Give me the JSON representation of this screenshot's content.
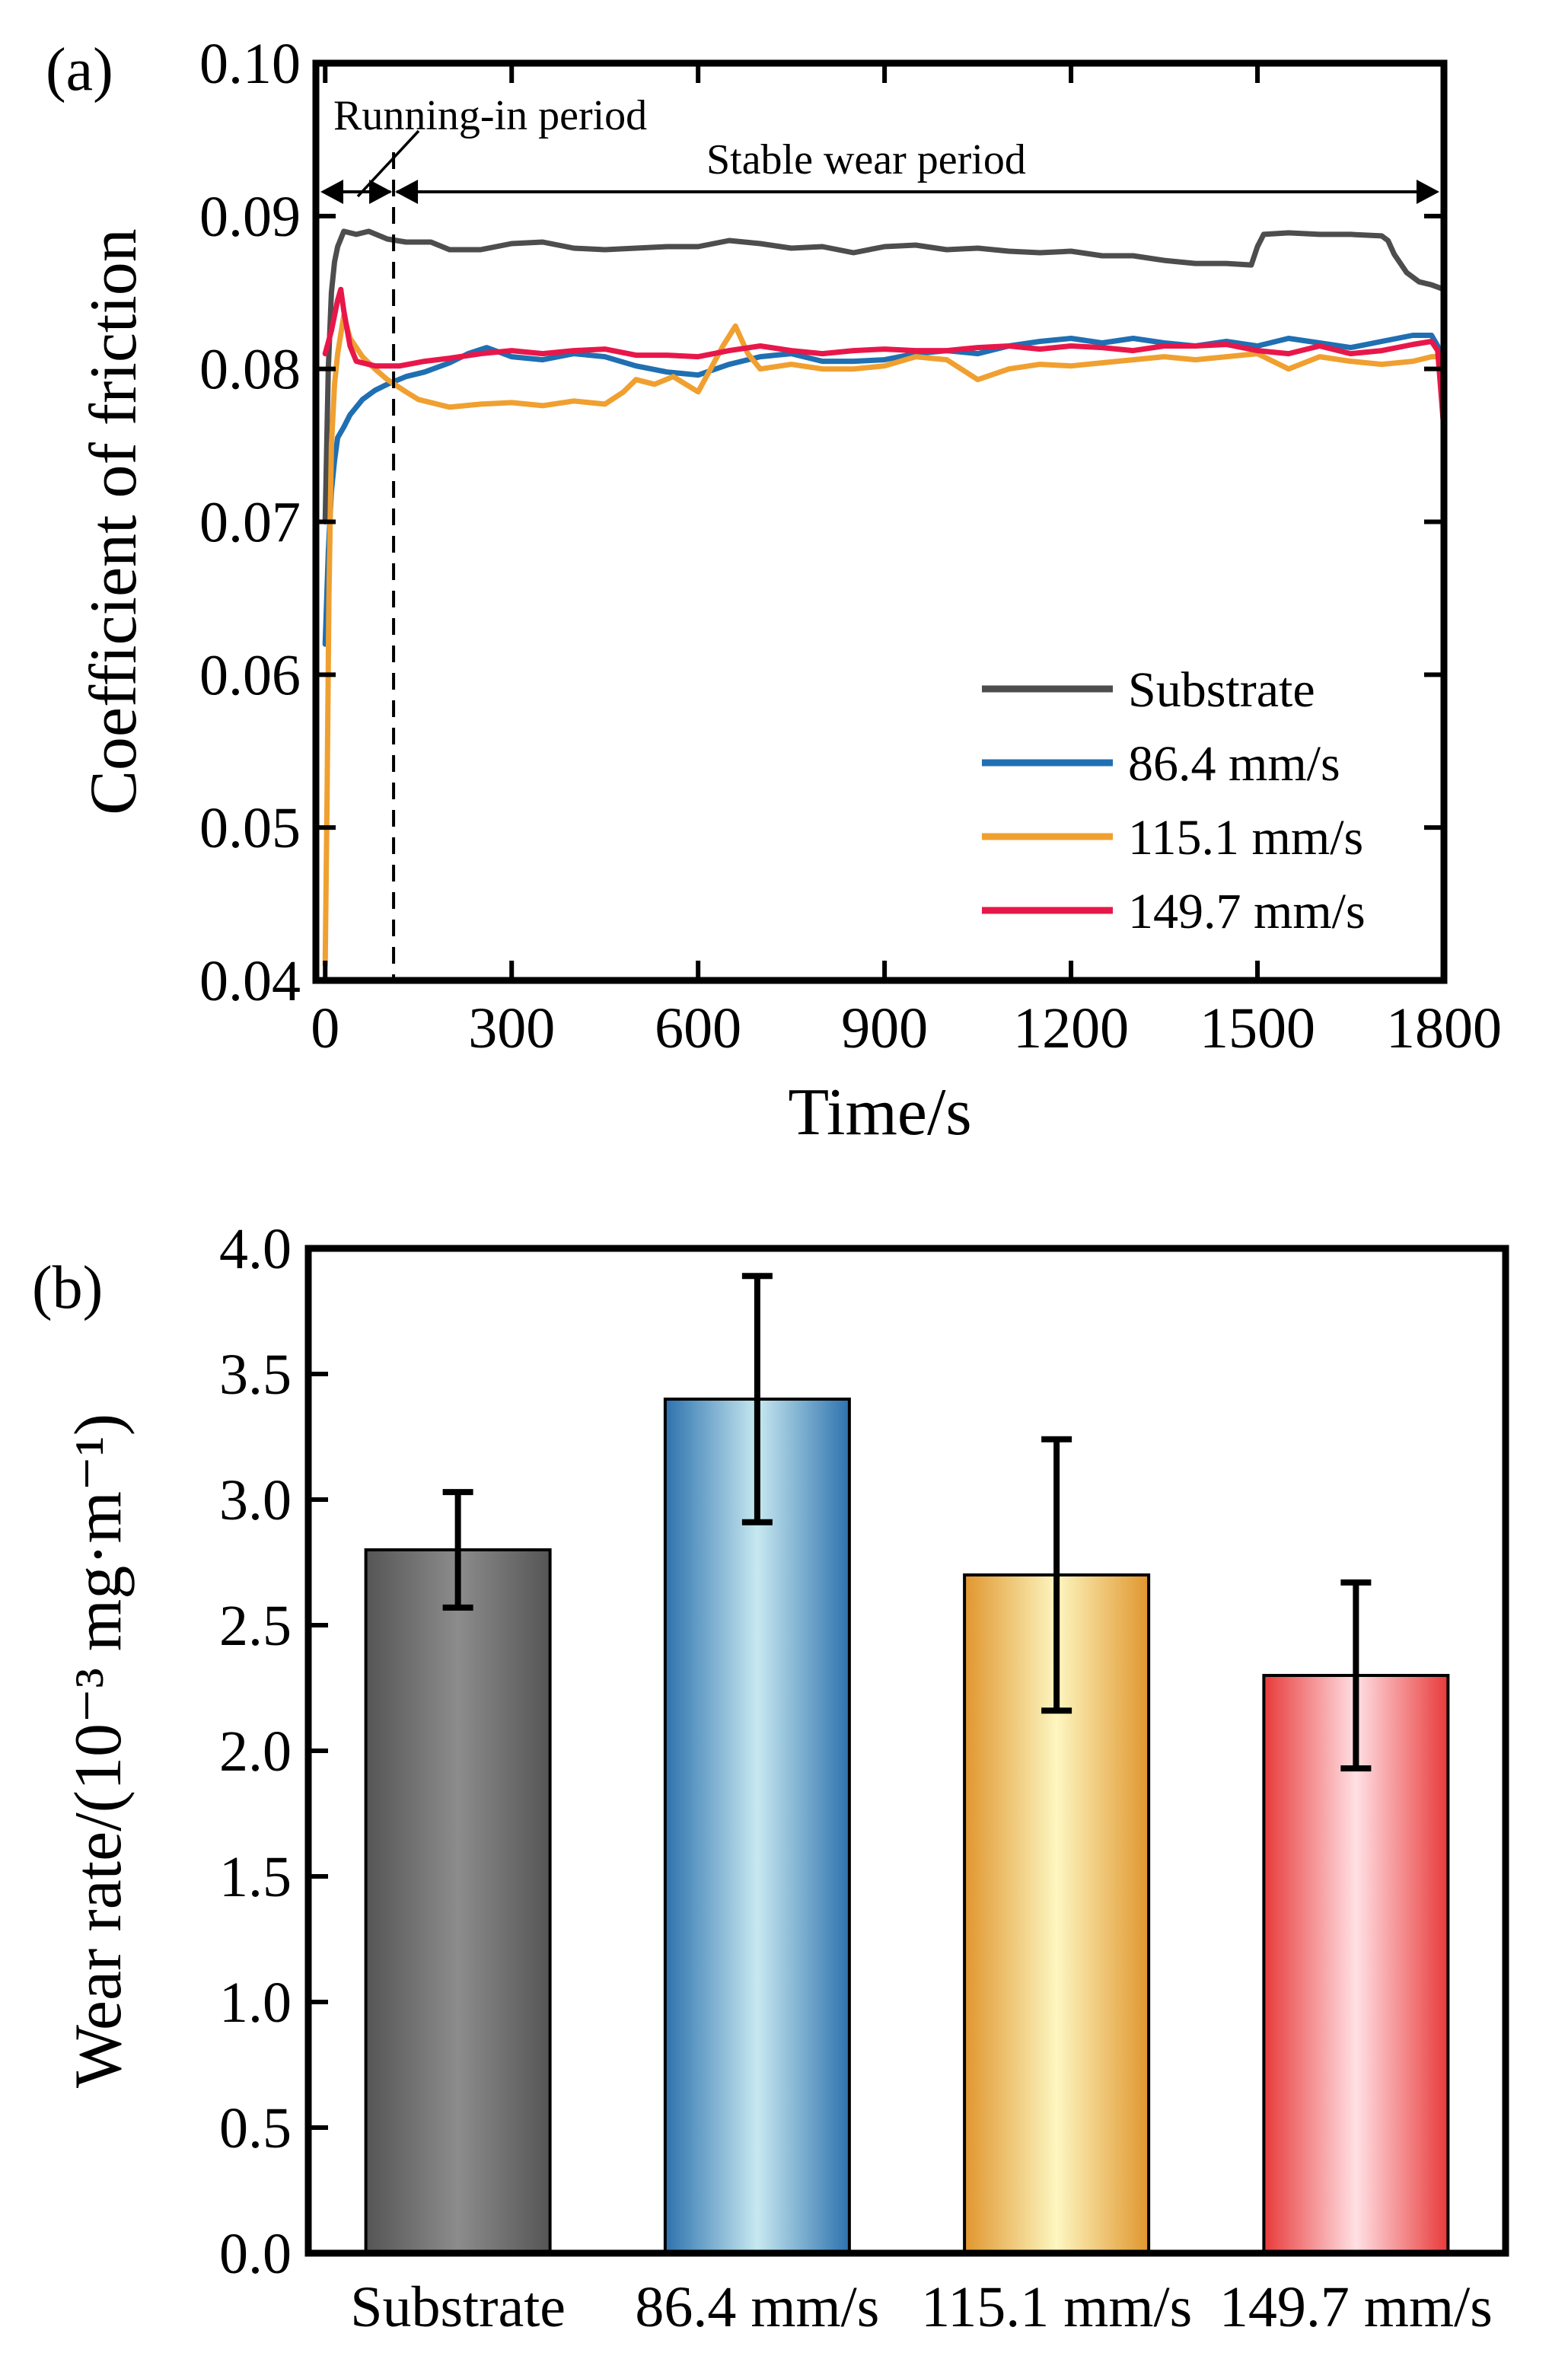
{
  "chart_data": [
    {
      "panel_label": "(a)",
      "type": "line",
      "xlabel": "Time/s",
      "ylabel": "Coefficient of friction",
      "xlim": [
        -15,
        1800
      ],
      "ylim": [
        0.04,
        0.1
      ],
      "xticks": [
        0,
        300,
        600,
        900,
        1200,
        1500,
        1800
      ],
      "xtick_labels": [
        "0",
        "300",
        "600",
        "900",
        "1200",
        "1500",
        "1800"
      ],
      "yticks": [
        0.04,
        0.05,
        0.06,
        0.07,
        0.08,
        0.09,
        0.1
      ],
      "ytick_labels": [
        "0.04",
        "0.05",
        "0.06",
        "0.07",
        "0.08",
        "0.09",
        "0.10"
      ],
      "grid": false,
      "legend_position": "bottom-right",
      "annotations": {
        "running_in": "Running-in period",
        "stable": "Stable wear period",
        "divider_x": 110
      },
      "series": [
        {
          "name": "Substrate",
          "color": "#4d4d4d",
          "x": [
            0,
            5,
            10,
            15,
            20,
            30,
            50,
            70,
            100,
            130,
            170,
            200,
            250,
            300,
            350,
            400,
            450,
            500,
            550,
            600,
            650,
            700,
            750,
            800,
            850,
            900,
            950,
            1000,
            1050,
            1100,
            1150,
            1200,
            1250,
            1300,
            1350,
            1400,
            1450,
            1490,
            1500,
            1510,
            1550,
            1600,
            1650,
            1700,
            1710,
            1720,
            1740,
            1760,
            1780,
            1800
          ],
          "values": [
            0.07,
            0.08,
            0.085,
            0.087,
            0.088,
            0.089,
            0.0888,
            0.089,
            0.0885,
            0.0883,
            0.0883,
            0.0878,
            0.0878,
            0.0882,
            0.0883,
            0.0879,
            0.0878,
            0.0879,
            0.088,
            0.088,
            0.0884,
            0.0882,
            0.0879,
            0.088,
            0.0876,
            0.088,
            0.0881,
            0.0878,
            0.0879,
            0.0877,
            0.0876,
            0.0877,
            0.0874,
            0.0874,
            0.0871,
            0.0869,
            0.0869,
            0.0868,
            0.088,
            0.0888,
            0.0889,
            0.0888,
            0.0888,
            0.0887,
            0.0884,
            0.0875,
            0.0863,
            0.0857,
            0.0855,
            0.0852
          ]
        },
        {
          "name": "86.4 mm/s",
          "color": "#1f6fb2",
          "x": [
            0,
            5,
            10,
            15,
            20,
            30,
            40,
            60,
            80,
            100,
            130,
            160,
            200,
            230,
            260,
            300,
            350,
            400,
            450,
            500,
            550,
            600,
            650,
            700,
            750,
            800,
            850,
            900,
            950,
            1000,
            1050,
            1100,
            1150,
            1200,
            1250,
            1300,
            1350,
            1400,
            1450,
            1500,
            1550,
            1600,
            1650,
            1700,
            1750,
            1780,
            1790,
            1800
          ],
          "values": [
            0.062,
            0.068,
            0.072,
            0.074,
            0.0755,
            0.0762,
            0.077,
            0.078,
            0.0786,
            0.079,
            0.0795,
            0.0798,
            0.0804,
            0.081,
            0.0814,
            0.0808,
            0.0806,
            0.081,
            0.0808,
            0.0802,
            0.0798,
            0.0796,
            0.0803,
            0.0808,
            0.081,
            0.0805,
            0.0805,
            0.0806,
            0.081,
            0.0812,
            0.081,
            0.0815,
            0.0818,
            0.082,
            0.0817,
            0.082,
            0.0817,
            0.0815,
            0.0818,
            0.0815,
            0.082,
            0.0817,
            0.0814,
            0.0818,
            0.0822,
            0.0822,
            0.0815,
            0.079
          ]
        },
        {
          "name": "115.1 mm/s",
          "color": "#f0a030",
          "x": [
            0,
            3,
            6,
            10,
            15,
            20,
            30,
            40,
            60,
            80,
            100,
            130,
            150,
            200,
            250,
            300,
            350,
            400,
            450,
            480,
            500,
            530,
            560,
            600,
            620,
            640,
            660,
            680,
            700,
            750,
            800,
            850,
            900,
            950,
            1000,
            1050,
            1100,
            1150,
            1200,
            1250,
            1300,
            1350,
            1400,
            1450,
            1500,
            1550,
            1600,
            1650,
            1700,
            1750,
            1780,
            1790,
            1800
          ],
          "values": [
            0.041,
            0.052,
            0.065,
            0.075,
            0.079,
            0.081,
            0.0835,
            0.082,
            0.0808,
            0.08,
            0.0793,
            0.0785,
            0.078,
            0.0775,
            0.0777,
            0.0778,
            0.0776,
            0.0779,
            0.0777,
            0.0785,
            0.0793,
            0.079,
            0.0795,
            0.0785,
            0.08,
            0.0815,
            0.0828,
            0.081,
            0.08,
            0.0803,
            0.08,
            0.08,
            0.0802,
            0.0808,
            0.0806,
            0.0793,
            0.08,
            0.0803,
            0.0802,
            0.0804,
            0.0806,
            0.0808,
            0.0806,
            0.0808,
            0.081,
            0.08,
            0.0808,
            0.0805,
            0.0803,
            0.0805,
            0.0808,
            0.0808,
            0.08
          ]
        },
        {
          "name": "149.7 mm/s",
          "color": "#e8174a",
          "x": [
            0,
            10,
            20,
            25,
            30,
            40,
            50,
            80,
            120,
            160,
            200,
            250,
            300,
            350,
            400,
            450,
            500,
            550,
            600,
            650,
            700,
            750,
            800,
            850,
            900,
            950,
            1000,
            1050,
            1100,
            1150,
            1200,
            1250,
            1300,
            1350,
            1400,
            1450,
            1500,
            1550,
            1600,
            1650,
            1700,
            1750,
            1780,
            1790,
            1800
          ],
          "values": [
            0.081,
            0.0825,
            0.0845,
            0.0852,
            0.0838,
            0.0815,
            0.0805,
            0.0802,
            0.0802,
            0.0805,
            0.0807,
            0.081,
            0.0812,
            0.081,
            0.0812,
            0.0813,
            0.0809,
            0.0809,
            0.0808,
            0.0812,
            0.0815,
            0.0812,
            0.081,
            0.0812,
            0.0813,
            0.0812,
            0.0812,
            0.0814,
            0.0815,
            0.0813,
            0.0815,
            0.0814,
            0.0812,
            0.0815,
            0.0815,
            0.0816,
            0.0812,
            0.081,
            0.0815,
            0.081,
            0.0812,
            0.0816,
            0.0818,
            0.0812,
            0.076
          ]
        }
      ]
    },
    {
      "panel_label": "(b)",
      "type": "bar",
      "xlabel": "",
      "ylabel": "Wear rate/(10⁻³ mg·m⁻¹)",
      "ylim": [
        0,
        4.0
      ],
      "yticks": [
        0,
        0.5,
        1.0,
        1.5,
        2.0,
        2.5,
        3.0,
        3.5,
        4.0
      ],
      "ytick_labels": [
        "0.0",
        "0.5",
        "1.0",
        "1.5",
        "2.0",
        "2.5",
        "3.0",
        "3.5",
        "4.0"
      ],
      "grid": false,
      "categories": [
        "Substrate",
        "86.4 mm/s",
        "115.1 mm/s",
        "149.7 mm/s"
      ],
      "values": [
        2.8,
        3.4,
        2.7,
        2.3
      ],
      "error_low": [
        2.57,
        2.91,
        2.16,
        1.93
      ],
      "error_high": [
        3.03,
        3.89,
        3.24,
        2.67
      ],
      "colors": [
        {
          "edge": "#555555",
          "center": "#8c8c8c"
        },
        {
          "edge": "#2d72ae",
          "center": "#c7e8f0"
        },
        {
          "edge": "#e0962e",
          "center": "#fdf6c0"
        },
        {
          "edge": "#e83a3a",
          "center": "#ffe0e4"
        }
      ]
    }
  ]
}
